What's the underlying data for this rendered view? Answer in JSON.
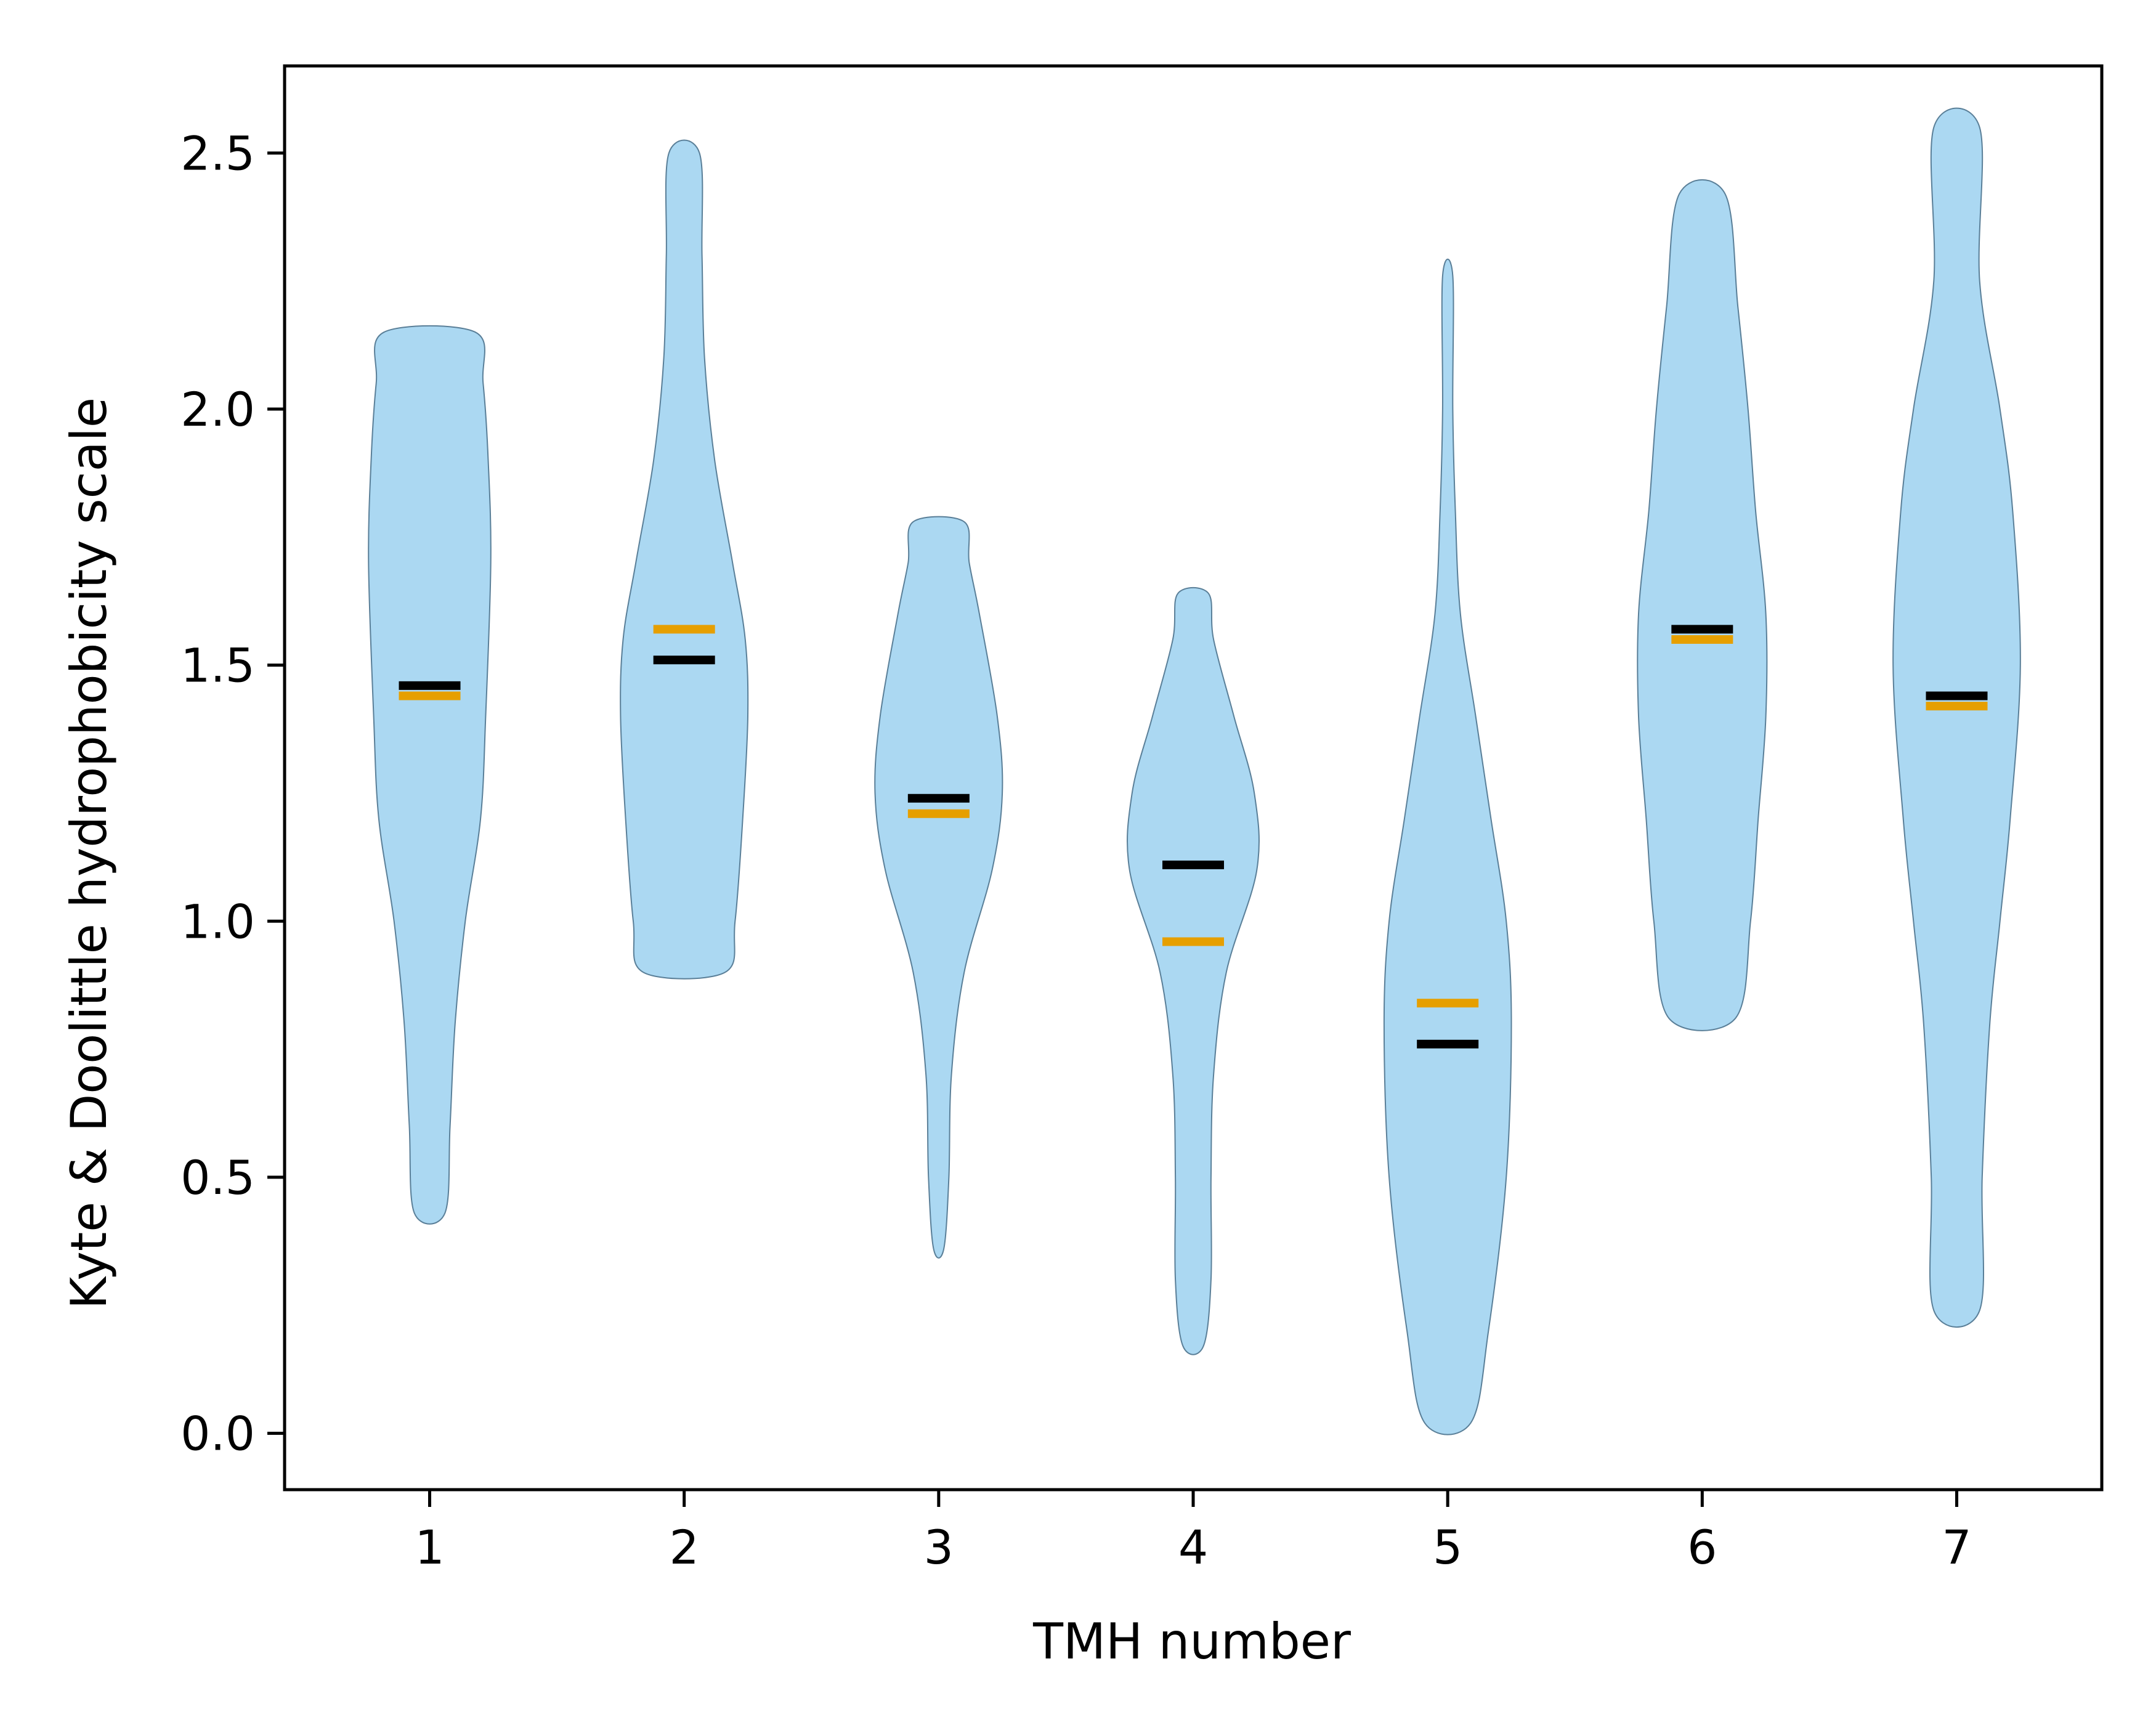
{
  "chart_data": {
    "type": "violin",
    "title": "",
    "xlabel": "TMH number",
    "ylabel": "Kyte & Doolittle hydrophobicity scale",
    "x_ticks": [
      "1",
      "2",
      "3",
      "4",
      "5",
      "6",
      "7"
    ],
    "y_ticks": [
      "0.0",
      "0.5",
      "1.0",
      "1.5",
      "2.0",
      "2.5"
    ],
    "y_tick_values": [
      0.0,
      0.5,
      1.0,
      1.5,
      2.0,
      2.5
    ],
    "xlim": [
      0.43,
      7.57
    ],
    "ylim": [
      -0.11,
      2.67
    ],
    "grid": false,
    "colors": {
      "violin_fill": "#abd8f2",
      "violin_edge": "#5a7f98",
      "mean_marker": "#000000",
      "median_marker": "#e69f00"
    },
    "violins": [
      {
        "tmh": 1,
        "mean": 1.46,
        "median": 1.44,
        "profile": [
          [
            0.43,
            0.06
          ],
          [
            0.6,
            0.08
          ],
          [
            0.8,
            0.1
          ],
          [
            1.0,
            0.14
          ],
          [
            1.2,
            0.2
          ],
          [
            1.4,
            0.22
          ],
          [
            1.7,
            0.24
          ],
          [
            1.9,
            0.23
          ],
          [
            2.05,
            0.21
          ],
          [
            2.15,
            0.18
          ]
        ]
      },
      {
        "tmh": 2,
        "mean": 1.51,
        "median": 1.57,
        "profile": [
          [
            0.9,
            0.16
          ],
          [
            1.0,
            0.2
          ],
          [
            1.2,
            0.23
          ],
          [
            1.4,
            0.25
          ],
          [
            1.55,
            0.24
          ],
          [
            1.7,
            0.19
          ],
          [
            1.9,
            0.12
          ],
          [
            2.1,
            0.08
          ],
          [
            2.3,
            0.07
          ],
          [
            2.5,
            0.06
          ]
        ]
      },
      {
        "tmh": 3,
        "mean": 1.24,
        "median": 1.21,
        "profile": [
          [
            0.36,
            0.02
          ],
          [
            0.5,
            0.04
          ],
          [
            0.7,
            0.05
          ],
          [
            0.9,
            0.1
          ],
          [
            1.1,
            0.21
          ],
          [
            1.25,
            0.25
          ],
          [
            1.4,
            0.23
          ],
          [
            1.6,
            0.16
          ],
          [
            1.7,
            0.12
          ],
          [
            1.78,
            0.1
          ]
        ]
      },
      {
        "tmh": 4,
        "mean": 1.11,
        "median": 0.96,
        "profile": [
          [
            0.17,
            0.04
          ],
          [
            0.3,
            0.07
          ],
          [
            0.5,
            0.07
          ],
          [
            0.7,
            0.08
          ],
          [
            0.9,
            0.13
          ],
          [
            1.1,
            0.25
          ],
          [
            1.25,
            0.24
          ],
          [
            1.4,
            0.16
          ],
          [
            1.55,
            0.08
          ],
          [
            1.64,
            0.06
          ]
        ]
      },
      {
        "tmh": 5,
        "mean": 0.76,
        "median": 0.84,
        "profile": [
          [
            0.02,
            0.09
          ],
          [
            0.2,
            0.16
          ],
          [
            0.5,
            0.23
          ],
          [
            0.8,
            0.25
          ],
          [
            1.0,
            0.23
          ],
          [
            1.2,
            0.17
          ],
          [
            1.4,
            0.11
          ],
          [
            1.6,
            0.05
          ],
          [
            1.8,
            0.03
          ],
          [
            2.0,
            0.02
          ],
          [
            2.26,
            0.02
          ]
        ]
      },
      {
        "tmh": 6,
        "mean": 1.57,
        "median": 1.55,
        "profile": [
          [
            0.81,
            0.13
          ],
          [
            1.0,
            0.19
          ],
          [
            1.2,
            0.22
          ],
          [
            1.4,
            0.25
          ],
          [
            1.6,
            0.25
          ],
          [
            1.8,
            0.21
          ],
          [
            2.0,
            0.18
          ],
          [
            2.2,
            0.14
          ],
          [
            2.42,
            0.09
          ]
        ]
      },
      {
        "tmh": 7,
        "mean": 1.44,
        "median": 1.42,
        "profile": [
          [
            0.24,
            0.09
          ],
          [
            0.5,
            0.1
          ],
          [
            0.8,
            0.13
          ],
          [
            1.0,
            0.17
          ],
          [
            1.2,
            0.21
          ],
          [
            1.5,
            0.25
          ],
          [
            1.8,
            0.22
          ],
          [
            2.0,
            0.17
          ],
          [
            2.25,
            0.09
          ],
          [
            2.55,
            0.09
          ]
        ]
      }
    ]
  }
}
